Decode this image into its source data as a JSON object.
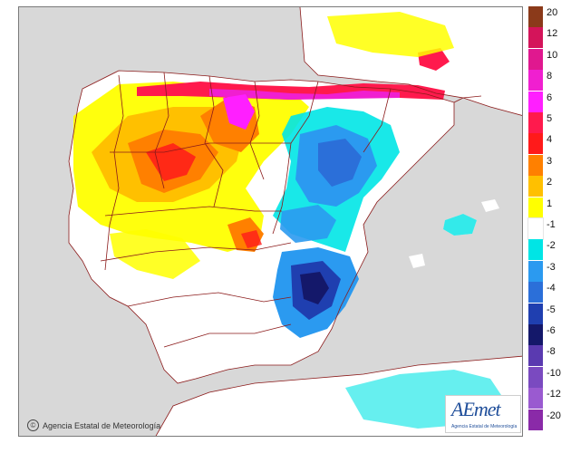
{
  "map": {
    "sea_color": "#d8d8d8",
    "land_color": "#ffffff",
    "border_color": "#8b1a1a",
    "copyright": "Agencia Estatal de Meteorología",
    "copyright_icon": "copyright-icon"
  },
  "logo": {
    "brand": "AEmet",
    "subtitle": "Agencia Estatal de Meteorología"
  },
  "legend": {
    "labels": [
      "20",
      "12",
      "10",
      "8",
      "6",
      "5",
      "4",
      "3",
      "2",
      "1",
      "-1",
      "-2",
      "-3",
      "-4",
      "-5",
      "-6",
      "-8",
      "-10",
      "-12",
      "-20"
    ],
    "colors": [
      "#8b3a1a",
      "#d4145a",
      "#e0188f",
      "#f01fd0",
      "#ff1fff",
      "#ff1a4d",
      "#ff1a1a",
      "#ff8000",
      "#ffc000",
      "#ffff00",
      "#ffffff",
      "#00e5e5",
      "#2b9af0",
      "#2b6fd9",
      "#1f3fb0",
      "#14186a",
      "#5a3ab0",
      "#7a4ac0",
      "#9a5ad0",
      "#8a2aa8"
    ]
  }
}
